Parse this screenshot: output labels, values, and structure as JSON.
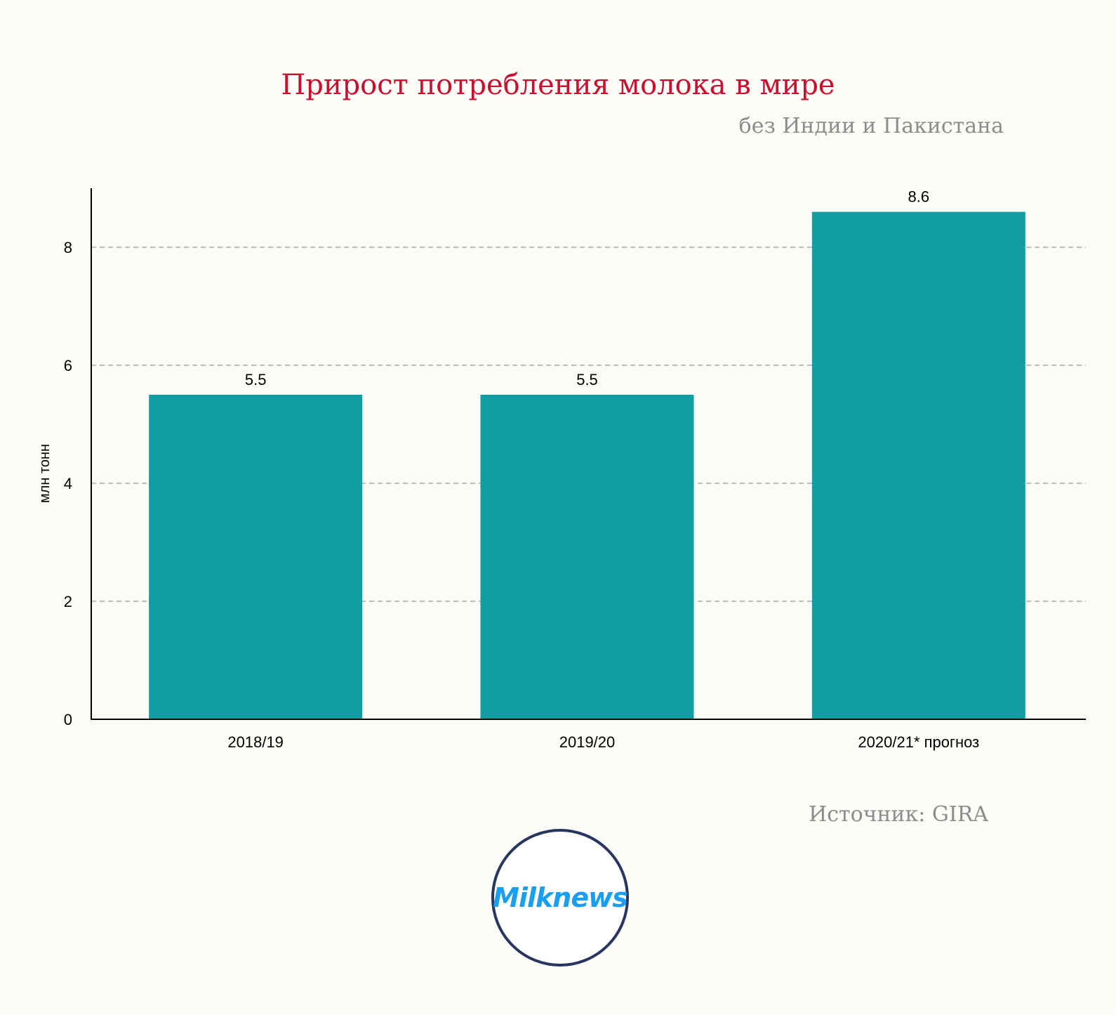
{
  "title": "Прирост потребления молока в мире",
  "subtitle": "без Индии и Пакистана",
  "source": "Источник: GIRA",
  "logo_text": "Milknews",
  "colors": {
    "title": "#c8102e",
    "bar": "#119ea3",
    "muted": "#8c8c8c",
    "logo_ring": "#26365f",
    "logo_text": "#1a9ff0"
  },
  "chart_data": {
    "type": "bar",
    "categories": [
      "2018/19",
      "2019/20",
      "2020/21* прогноз"
    ],
    "values": [
      5.5,
      5.5,
      8.6
    ],
    "data_labels": [
      "5.5",
      "5.5",
      "8.6"
    ],
    "ylabel": "млн тонн",
    "xlabel": "",
    "ylim": [
      0,
      9
    ],
    "yticks": [
      0,
      2,
      4,
      6,
      8
    ],
    "grid": true,
    "legend": "none"
  }
}
